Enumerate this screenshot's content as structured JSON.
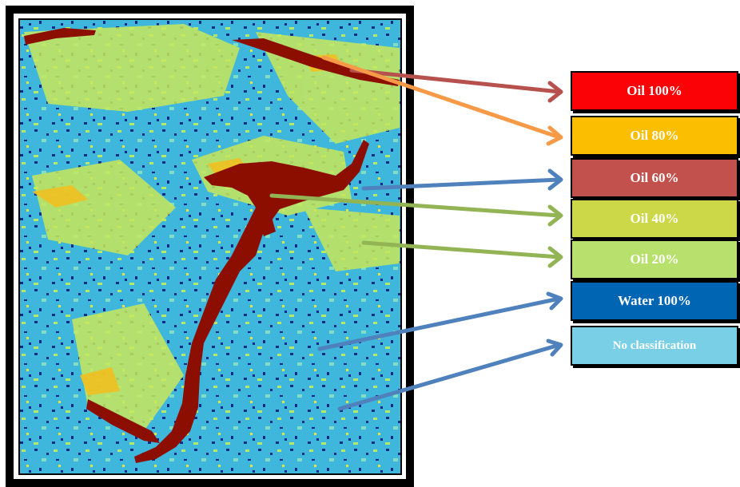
{
  "colors": {
    "background_water": "#3fb6dc",
    "frame": "#000000",
    "oil_slick": "#8b0e00"
  },
  "legend": [
    {
      "label": "Oil 100%",
      "color": "#fb0207",
      "arrow_color": "#b7514d"
    },
    {
      "label": "Oil 80%",
      "color": "#fbbe00",
      "arrow_color": "#f79a47"
    },
    {
      "label": "Oil 60%",
      "color": "#c2504c",
      "arrow_color": "#4f81bd"
    },
    {
      "label": "Oil 40%",
      "color": "#ccd848",
      "arrow_color": "#93b455"
    },
    {
      "label": "Oil 20%",
      "color": "#b7e06c",
      "arrow_color": "#93b455"
    },
    {
      "label": "Water 100%",
      "color": "#0066b3",
      "arrow_color": "#4f81bd"
    },
    {
      "label": "No classification",
      "color": "#79cfe5",
      "arrow_color": "#4f81bd"
    }
  ]
}
